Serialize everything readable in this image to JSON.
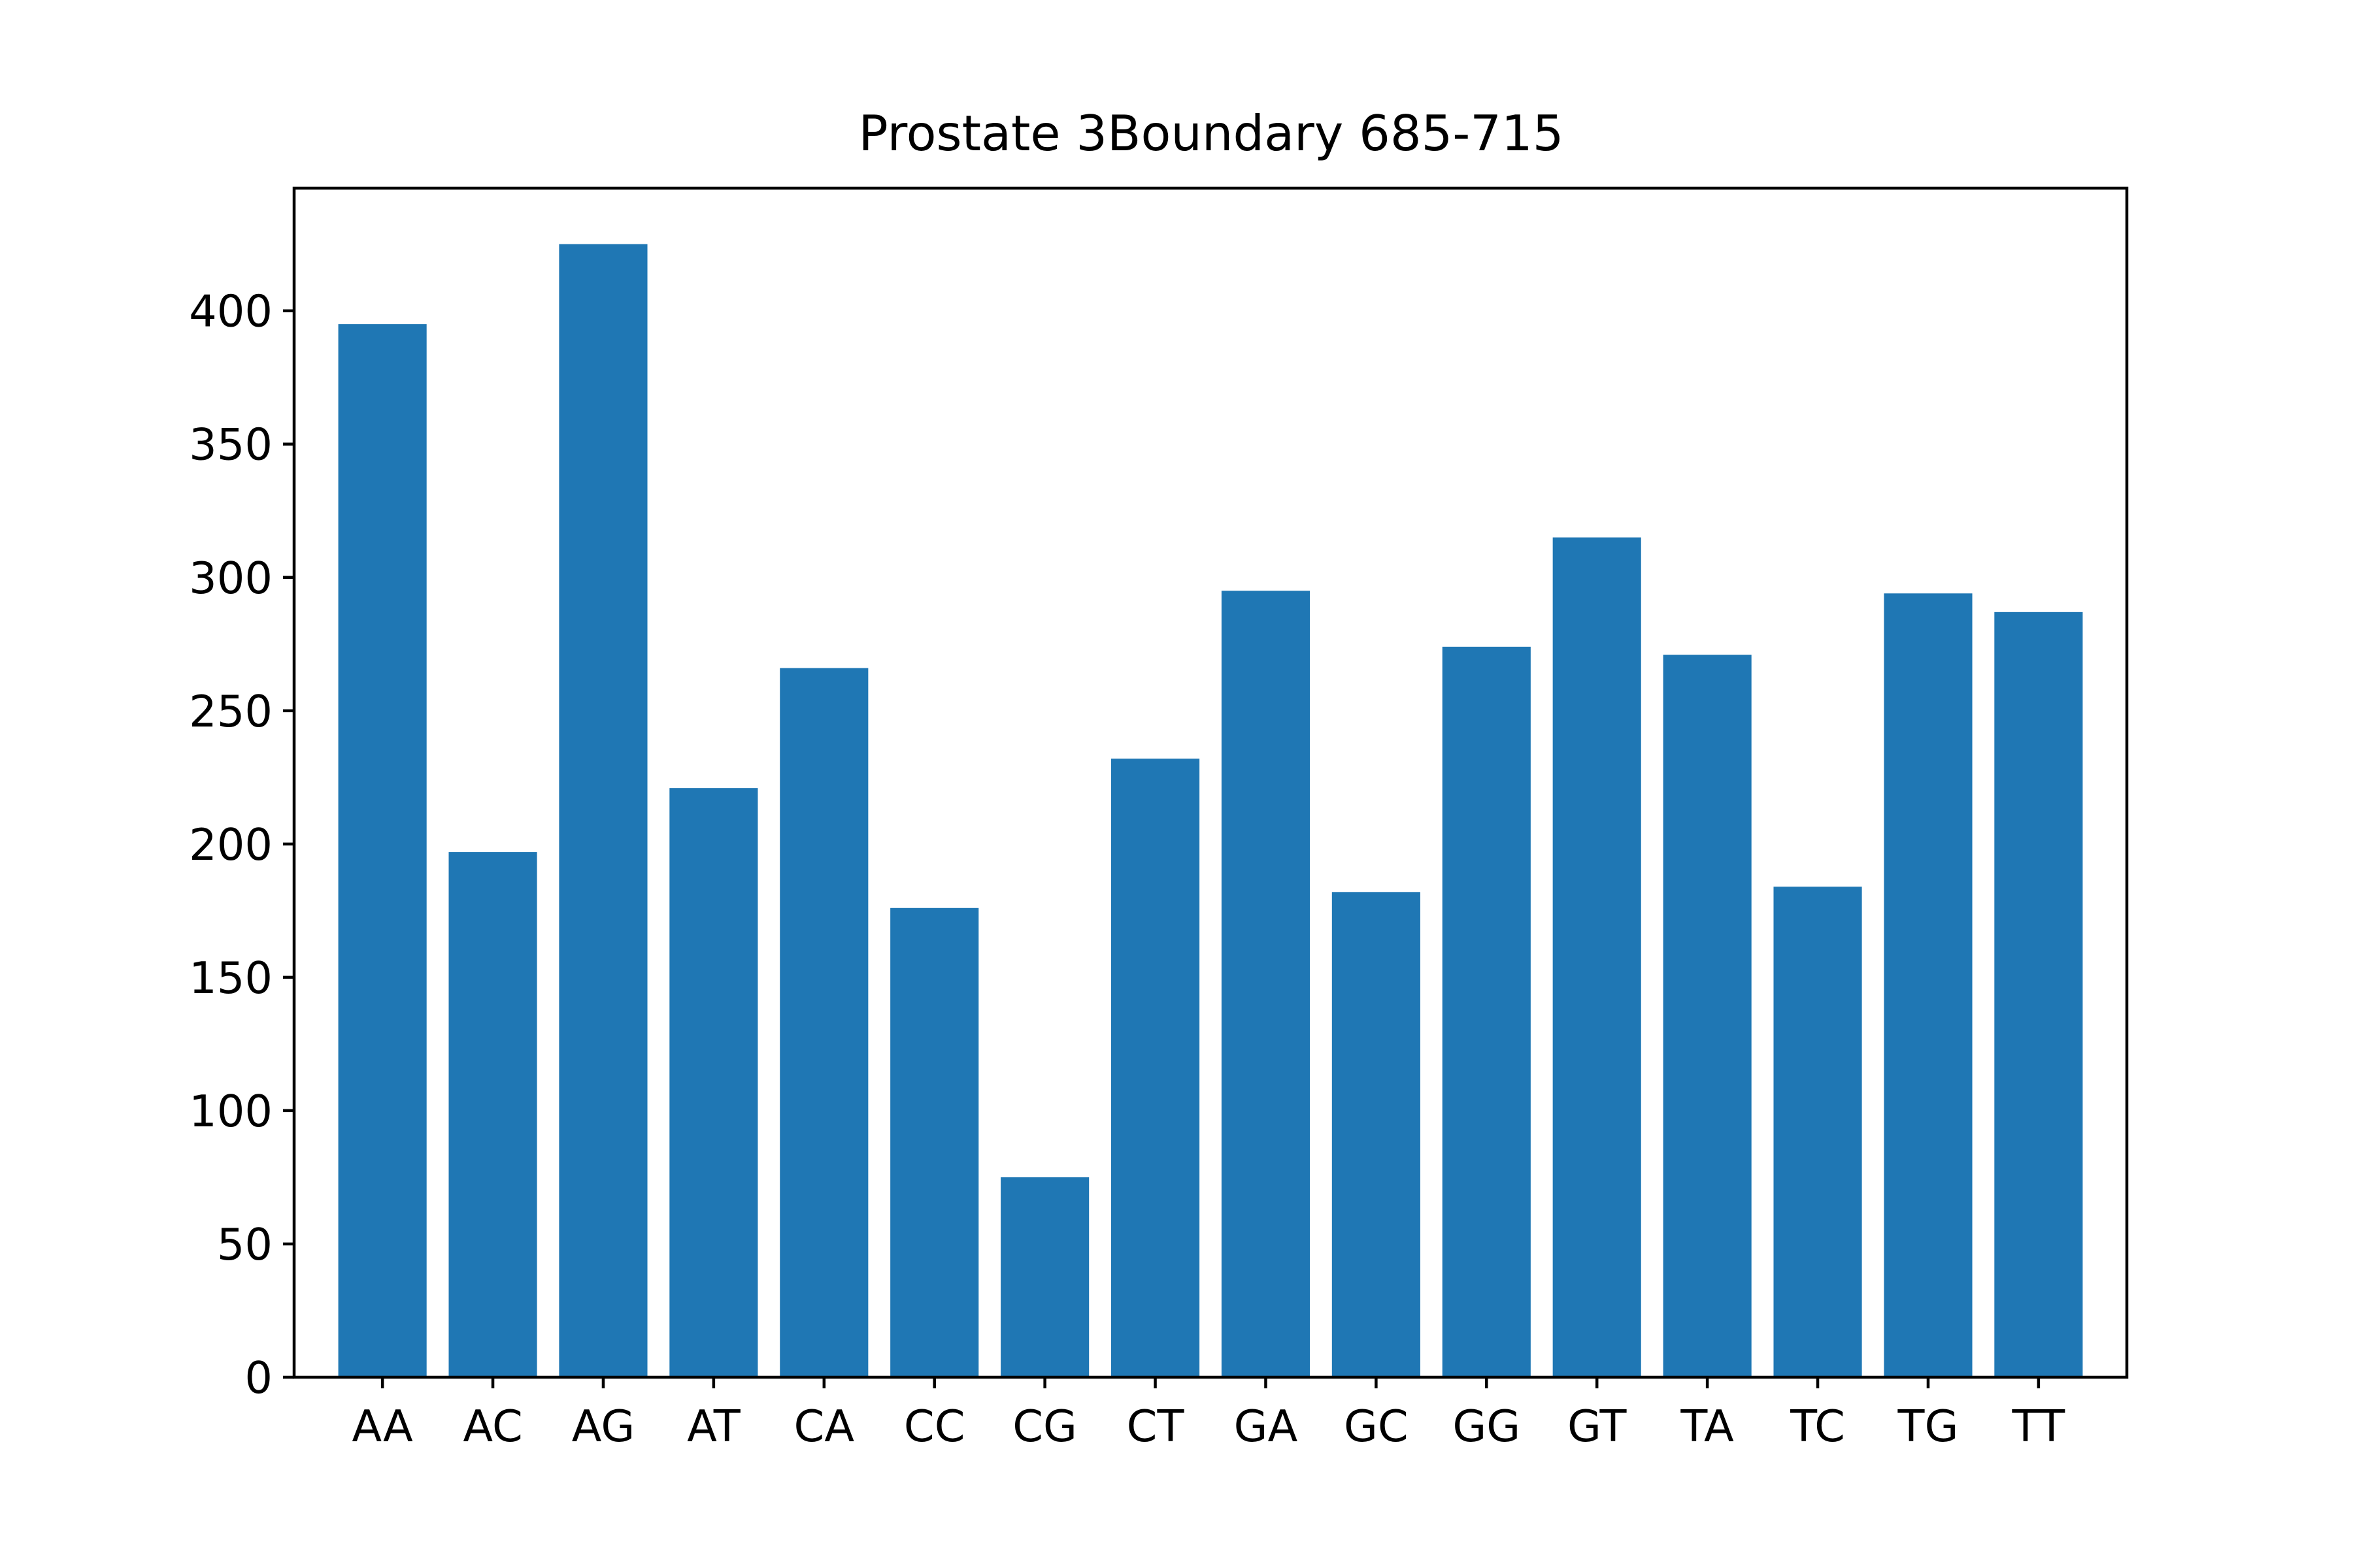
{
  "chart_data": {
    "type": "bar",
    "title": "Prostate 3Boundary 685-715",
    "xlabel": "",
    "ylabel": "",
    "categories": [
      "AA",
      "AC",
      "AG",
      "AT",
      "CA",
      "CC",
      "CG",
      "CT",
      "GA",
      "GC",
      "GG",
      "GT",
      "TA",
      "TC",
      "TG",
      "TT"
    ],
    "values": [
      395,
      197,
      425,
      221,
      266,
      176,
      75,
      232,
      295,
      182,
      274,
      315,
      271,
      184,
      294,
      287
    ],
    "ylim": [
      0,
      446
    ],
    "yticks": [
      0,
      50,
      100,
      150,
      200,
      250,
      300,
      350,
      400
    ],
    "bar_color": "#1f77b4",
    "grid": false,
    "legend": "none"
  }
}
